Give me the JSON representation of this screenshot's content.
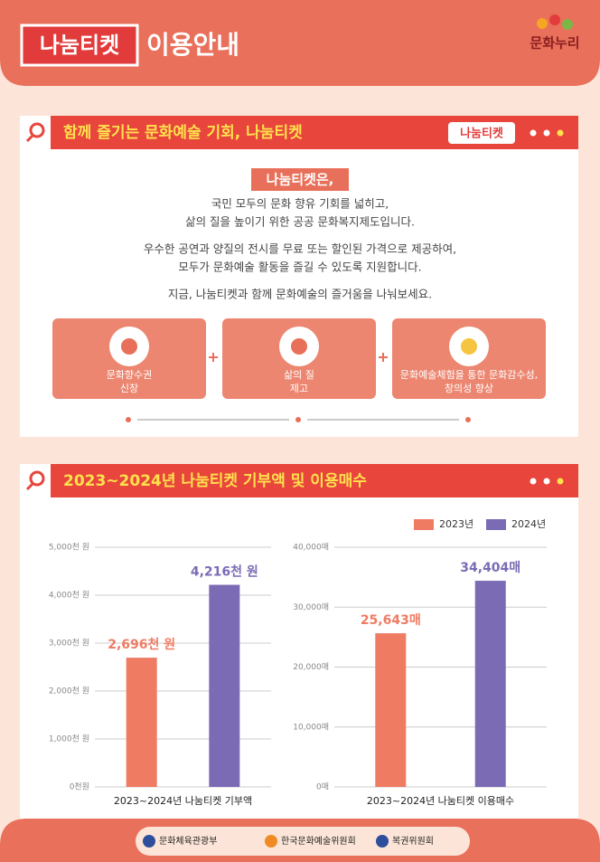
{
  "header": {
    "logo": "나눔티켓",
    "title": "이용안내",
    "brand": "문화누리"
  },
  "intro": {
    "title": "함께 즐기는 문화예술 기회, 나눔티켓",
    "badge": "나눔티켓",
    "label": "나눔티켓은,",
    "paragraphs": [
      [
        "국민 모두의 문화 향유 기회를 넓히고,",
        "삶의 질을 높이기 위한 공공 문화복지제도입니다."
      ],
      [
        "우수한 공연과 양질의 전시를 무료 또는 할인된 가격으로 제공하여,",
        "모두가 문화예술 활동을 즐길 수 있도록 지원합니다."
      ],
      [
        "지금, 나눔티켓과 함께 문화예술의 즐거움을 나눠보세요."
      ]
    ],
    "features": [
      [
        "문화향수권",
        "신장"
      ],
      [
        "삶의 질",
        "제고"
      ],
      [
        "문화예술체험을 통한 문화감수성,",
        "창의성 향상"
      ]
    ]
  },
  "stats": {
    "title": "2023~2024년 나눔티켓 기부액  및 이용매수"
  },
  "chart_data": [
    {
      "type": "bar",
      "categories": [
        "2023~2024년 나눔티켓 기부액"
      ],
      "series": [
        {
          "name": "2023년",
          "color": "#ef7b63",
          "values": [
            2696
          ],
          "value_labels": [
            "2,696천 원"
          ]
        },
        {
          "name": "2024년",
          "color": "#7b6bb5",
          "values": [
            4216
          ],
          "value_labels": [
            "4,216천 원"
          ]
        }
      ],
      "ylim": [
        0,
        5000
      ],
      "yticks": [
        {
          "value": 0,
          "label": "0천원"
        },
        {
          "value": 1000,
          "label": "1,000천 원"
        },
        {
          "value": 2000,
          "label": "2,000천 원"
        },
        {
          "value": 3000,
          "label": "3,000천 원"
        },
        {
          "value": 4000,
          "label": "4,000천 원"
        },
        {
          "value": 5000,
          "label": "5,000천 원"
        }
      ],
      "grid": true,
      "legend": "top-right"
    },
    {
      "type": "bar",
      "categories": [
        "2023~2024년 나눔티켓 이용매수"
      ],
      "series": [
        {
          "color": "#ef7b63",
          "values": [
            25643
          ],
          "value_labels": [
            "25,643매"
          ]
        },
        {
          "color": "#7b6bb5",
          "values": [
            34404
          ],
          "value_labels": [
            "34,404매"
          ]
        }
      ],
      "ylim": [
        0,
        40000
      ],
      "yticks": [
        {
          "value": 0,
          "label": "0매"
        },
        {
          "value": 10000,
          "label": "10,000매"
        },
        {
          "value": 20000,
          "label": "20,000매"
        },
        {
          "value": 30000,
          "label": "30,000매"
        },
        {
          "value": 40000,
          "label": "40,000매"
        }
      ],
      "grid": true
    }
  ],
  "footer": {
    "orgs": [
      "문화체육관광부",
      "한국문화예술위원회",
      "복권위원회"
    ]
  }
}
